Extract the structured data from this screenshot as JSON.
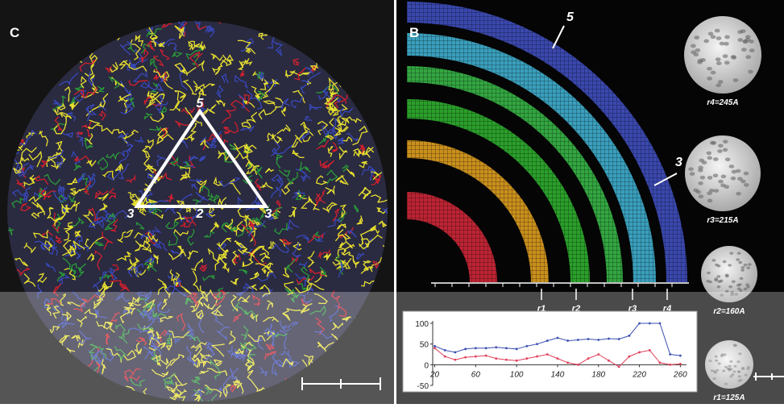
{
  "panel_c": {
    "label": "C",
    "triangle_labels": [
      "5",
      "3",
      "2",
      "3"
    ]
  },
  "panel_b": {
    "label": "B",
    "arrow_labels": [
      "5",
      "3"
    ],
    "radius_labels": [
      "r1",
      "r2",
      "r3",
      "r4"
    ],
    "spheres": [
      "r4=245A",
      "r3=215A",
      "r2=160A",
      "r1=125A"
    ]
  },
  "chart_data": {
    "type": "line",
    "x": [
      20,
      30,
      40,
      50,
      60,
      70,
      80,
      90,
      100,
      110,
      120,
      130,
      140,
      150,
      160,
      170,
      180,
      190,
      200,
      210,
      220,
      230,
      240,
      250,
      260
    ],
    "series": [
      {
        "color": "#3a4fb0",
        "values": [
          45,
          35,
          30,
          38,
          40,
          40,
          42,
          40,
          38,
          45,
          50,
          58,
          65,
          58,
          60,
          62,
          60,
          63,
          62,
          70,
          100,
          100,
          100,
          25,
          22
        ]
      },
      {
        "color": "#e0405a",
        "values": [
          40,
          20,
          12,
          18,
          20,
          22,
          15,
          12,
          10,
          15,
          20,
          25,
          15,
          5,
          0,
          15,
          25,
          10,
          -5,
          20,
          30,
          35,
          5,
          0,
          2
        ]
      }
    ],
    "xlim": [
      18,
      266
    ],
    "ylim": [
      -50,
      100
    ],
    "xticks": [
      20,
      60,
      100,
      140,
      180,
      220,
      260
    ],
    "yticks": [
      100,
      50,
      0,
      -50
    ]
  }
}
